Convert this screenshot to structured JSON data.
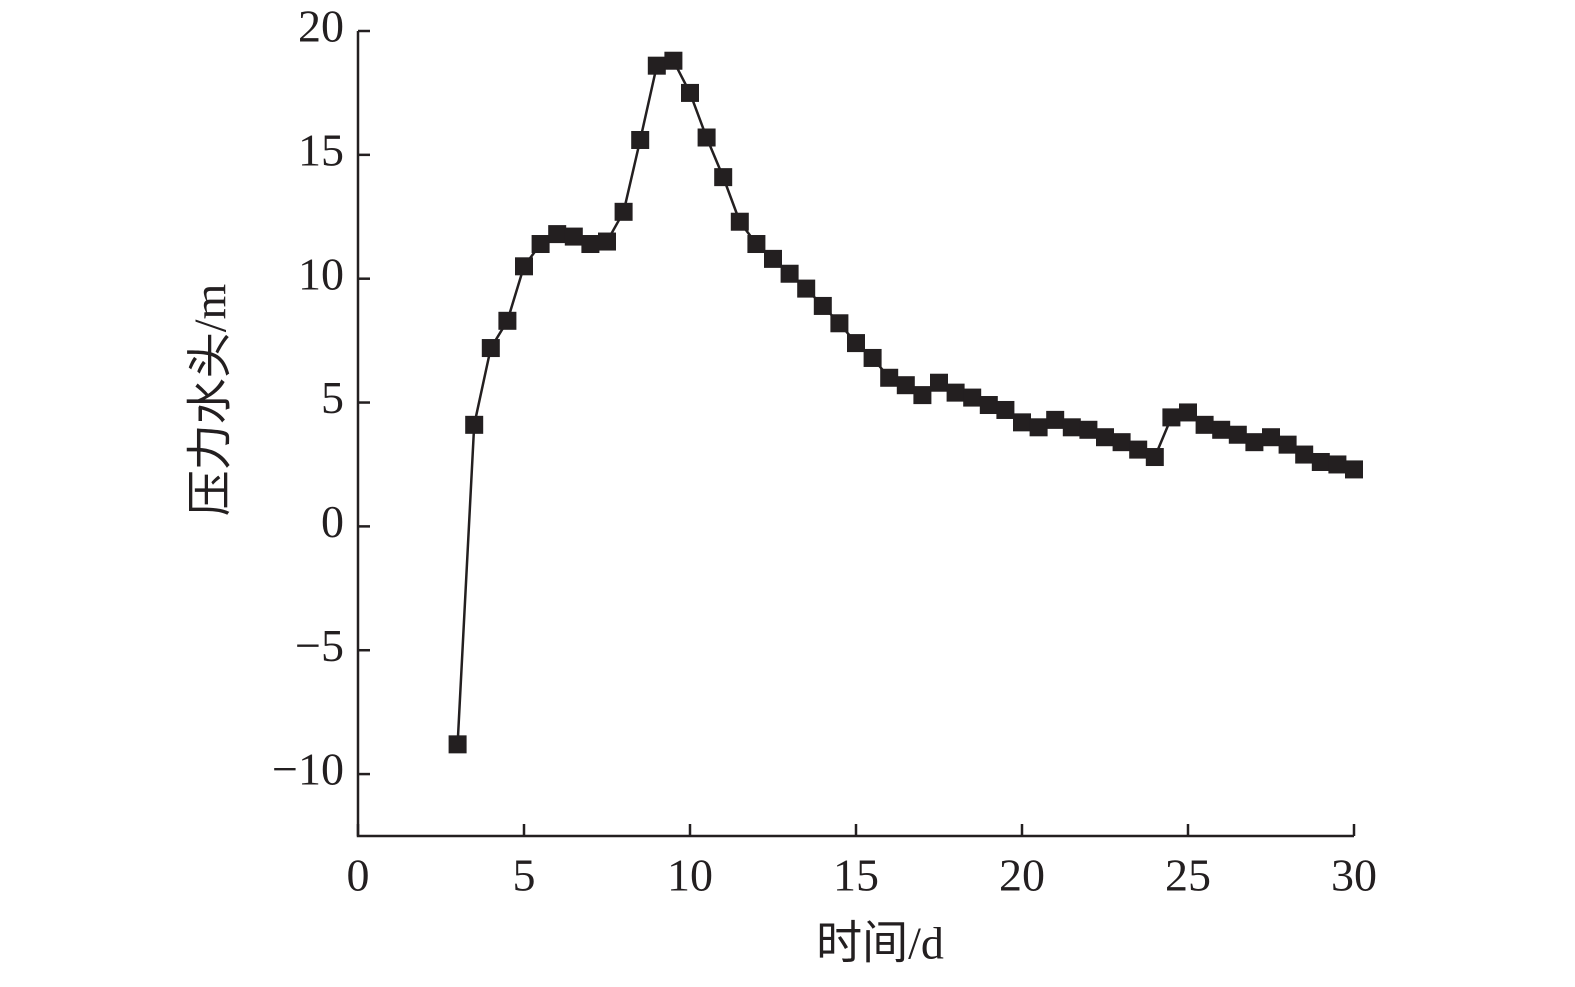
{
  "chart_data": {
    "type": "line",
    "x_label": "时间/d",
    "y_label": "压力水头/m",
    "x": [
      3,
      3.5,
      4,
      4.5,
      5,
      5.5,
      6,
      6.5,
      7,
      7.5,
      8,
      8.5,
      9,
      9.5,
      10,
      10.5,
      11,
      11.5,
      12,
      12.5,
      13,
      13.5,
      14,
      14.5,
      15,
      15.5,
      16,
      16.5,
      17,
      17.5,
      18,
      18.5,
      19,
      19.5,
      20,
      20.5,
      21,
      21.5,
      22,
      22.5,
      23,
      23.5,
      24,
      24.5,
      25,
      25.5,
      26,
      26.5,
      27,
      27.5,
      28,
      28.5,
      29,
      29.5,
      30
    ],
    "series": [
      {
        "color": "#231f20",
        "marker": "square",
        "values": [
          -8.8,
          4.1,
          7.2,
          8.3,
          10.5,
          11.4,
          11.8,
          11.7,
          11.4,
          11.5,
          12.7,
          15.6,
          18.6,
          18.8,
          17.5,
          15.7,
          14.1,
          12.3,
          11.4,
          10.8,
          10.2,
          9.6,
          8.9,
          8.2,
          7.4,
          6.8,
          6.0,
          5.7,
          5.3,
          5.8,
          5.4,
          5.2,
          4.9,
          4.7,
          4.2,
          4.0,
          4.3,
          4.0,
          3.9,
          3.6,
          3.4,
          3.1,
          2.8,
          4.4,
          4.6,
          4.1,
          3.9,
          3.7,
          3.4,
          3.6,
          3.3,
          2.9,
          2.6,
          2.5,
          2.3
        ]
      }
    ],
    "xlim": [
      0,
      30
    ],
    "xticks": [
      0,
      5,
      10,
      15,
      20,
      25,
      30
    ],
    "ylim": [
      -12.5,
      20
    ],
    "yticks": [
      {
        "value": -10,
        "label": "−10"
      },
      {
        "value": -5,
        "label": "−5"
      },
      0,
      5,
      10,
      15,
      20
    ],
    "grid": false
  }
}
